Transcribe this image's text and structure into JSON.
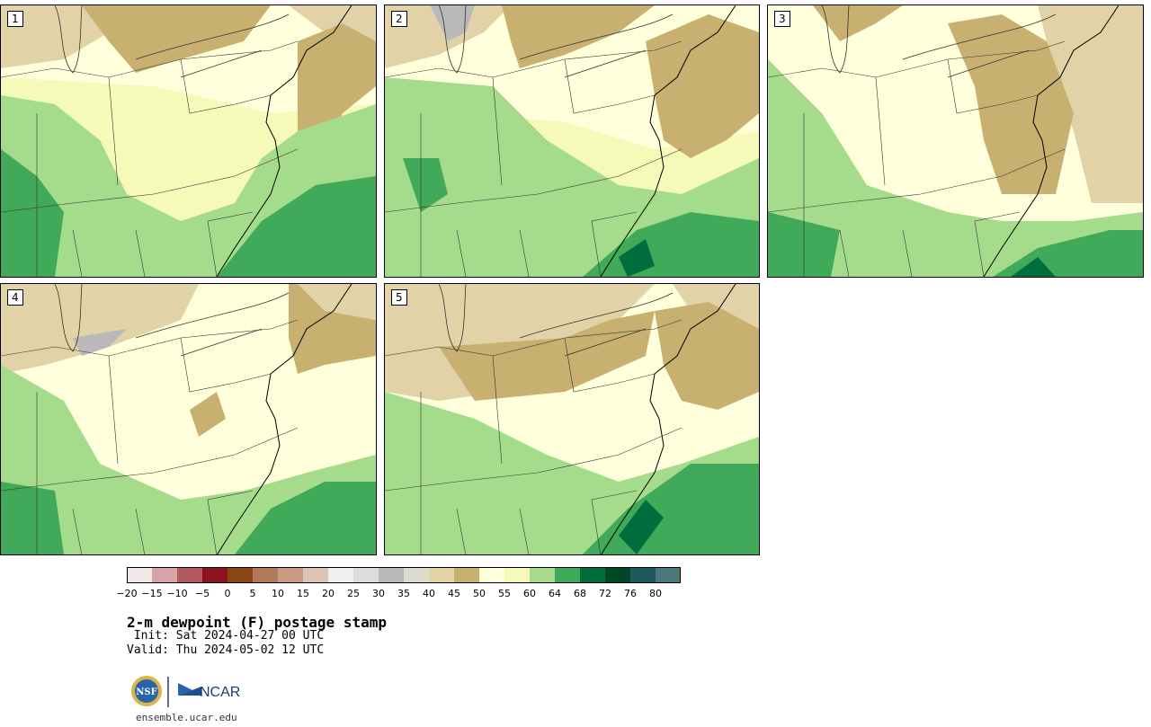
{
  "panels": [
    {
      "label": "1"
    },
    {
      "label": "2"
    },
    {
      "label": "3"
    },
    {
      "label": "4"
    },
    {
      "label": "5"
    }
  ],
  "colorbar": {
    "ticks": [
      "−20",
      "−15",
      "−10",
      "−5",
      "0",
      "5",
      "10",
      "15",
      "20",
      "25",
      "30",
      "35",
      "40",
      "45",
      "50",
      "55",
      "60",
      "64",
      "68",
      "72",
      "76",
      "80"
    ],
    "colors": [
      "#f2e6e6",
      "#d7a3a8",
      "#b45a5f",
      "#8c141e",
      "#8c4614",
      "#b4785a",
      "#c89b82",
      "#dcc3b4",
      "#f0f0f0",
      "#dcdcdc",
      "#b9b9b9",
      "#dcdccd",
      "#e1d2a8",
      "#c8b070",
      "#ffffdc",
      "#f5fab9",
      "#a5dc8c",
      "#41aa5a",
      "#006e3c",
      "#004628",
      "#1e5a5a",
      "#4b7878"
    ]
  },
  "title": "2-m dewpoint (F) postage stamp",
  "init": " Init: Sat 2024-04-27 00 UTC",
  "valid": "Valid: Thu 2024-05-02 12 UTC",
  "logos": {
    "nsf": "NSF",
    "ncar": "NCAR"
  },
  "site": "ensemble.ucar.edu"
}
